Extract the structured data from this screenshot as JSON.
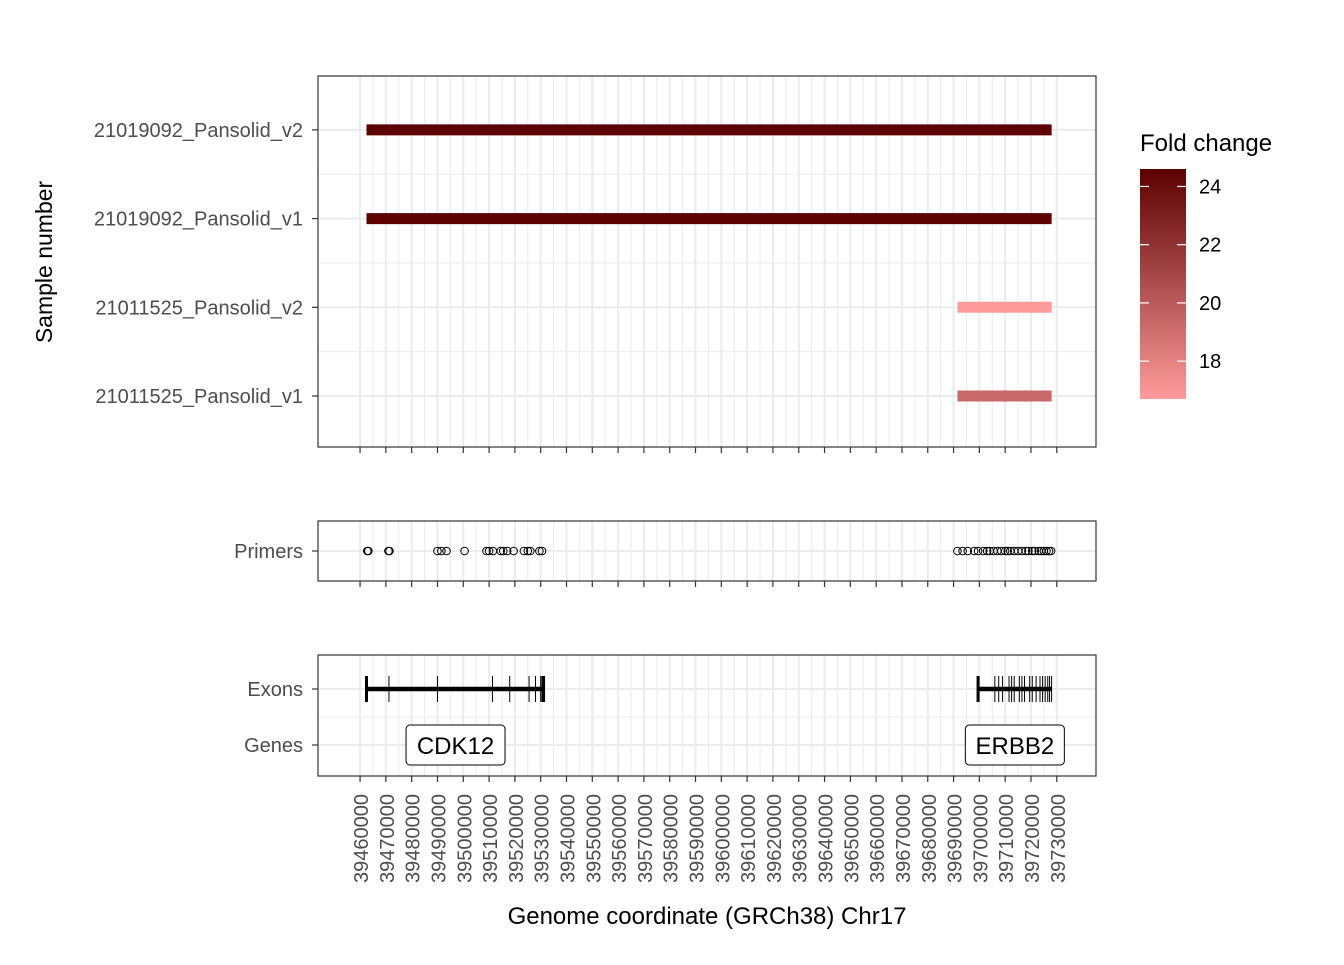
{
  "chart_data": [
    {
      "type": "segment",
      "panel": "sample-fold-change",
      "ylabel": "Sample number",
      "categories": [
        "21011525_Pansolid_v1",
        "21011525_Pansolid_v2",
        "21019092_Pansolid_v1",
        "21019092_Pansolid_v2"
      ],
      "segments": [
        {
          "sample": "21019092_Pansolid_v2",
          "start": 39462500,
          "end": 39728000,
          "fold_change": 24.6
        },
        {
          "sample": "21019092_Pansolid_v1",
          "start": 39462500,
          "end": 39728000,
          "fold_change": 24.6
        },
        {
          "sample": "21011525_Pansolid_v2",
          "start": 39691500,
          "end": 39728000,
          "fold_change": 16.7
        },
        {
          "sample": "21011525_Pansolid_v1",
          "start": 39691500,
          "end": 39728000,
          "fold_change": 19.3
        }
      ],
      "legend": {
        "title": "Fold change",
        "range": [
          16.7,
          24.6
        ],
        "ticks": [
          "18",
          "20",
          "22",
          "24"
        ],
        "tick_values": [
          18,
          20,
          22,
          24
        ],
        "color_low": "#ff9b9b",
        "color_high": "#5c0000",
        "placement": "right"
      },
      "grid": true
    },
    {
      "type": "scatter",
      "panel": "primers",
      "category": "Primers",
      "x": [
        39462800,
        39463200,
        39471000,
        39471400,
        39490000,
        39491500,
        39493500,
        39500500,
        39509000,
        39510000,
        39511500,
        39514500,
        39515500,
        39517000,
        39519500,
        39523500,
        39525000,
        39526000,
        39529500,
        39530500,
        39691500,
        39693500,
        39695500,
        39698000,
        39699500,
        39701500,
        39703000,
        39704000,
        39705500,
        39707000,
        39708500,
        39710000,
        39711000,
        39712000,
        39713500,
        39715000,
        39716500,
        39718000,
        39719000,
        39720500,
        39721500,
        39723000,
        39724000,
        39725000,
        39726000,
        39727000,
        39727800
      ],
      "grid": true
    },
    {
      "type": "gene-track",
      "panel": "exons-genes",
      "categories": [
        "Genes",
        "Exons"
      ],
      "genes": [
        {
          "name": "CDK12",
          "start": 39462500,
          "end": 39531500,
          "exons": [
            39462500,
            39471200,
            39490000,
            39511300,
            39518000,
            39525500,
            39528000,
            39530000,
            39530500,
            39531000,
            39531500
          ]
        },
        {
          "name": "ERBB2",
          "start": 39699500,
          "end": 39728000,
          "exons": [
            39699500,
            39706000,
            39707500,
            39709000,
            39711500,
            39712500,
            39713500,
            39715500,
            39716500,
            39717500,
            39719500,
            39720500,
            39722000,
            39723500,
            39724500,
            39725500,
            39726500,
            39727200,
            39728000
          ]
        }
      ],
      "grid": true
    }
  ],
  "x_axis": {
    "label": "Genome coordinate (GRCh38) Chr17",
    "ticks": [
      "39460000",
      "39470000",
      "39480000",
      "39490000",
      "39500000",
      "39510000",
      "39520000",
      "39530000",
      "39540000",
      "39550000",
      "39560000",
      "39570000",
      "39580000",
      "39590000",
      "39600000",
      "39610000",
      "39620000",
      "39630000",
      "39640000",
      "39650000",
      "39660000",
      "39670000",
      "39680000",
      "39690000",
      "39700000",
      "39710000",
      "39720000",
      "39730000"
    ],
    "range": [
      39443700,
      39745200
    ]
  }
}
